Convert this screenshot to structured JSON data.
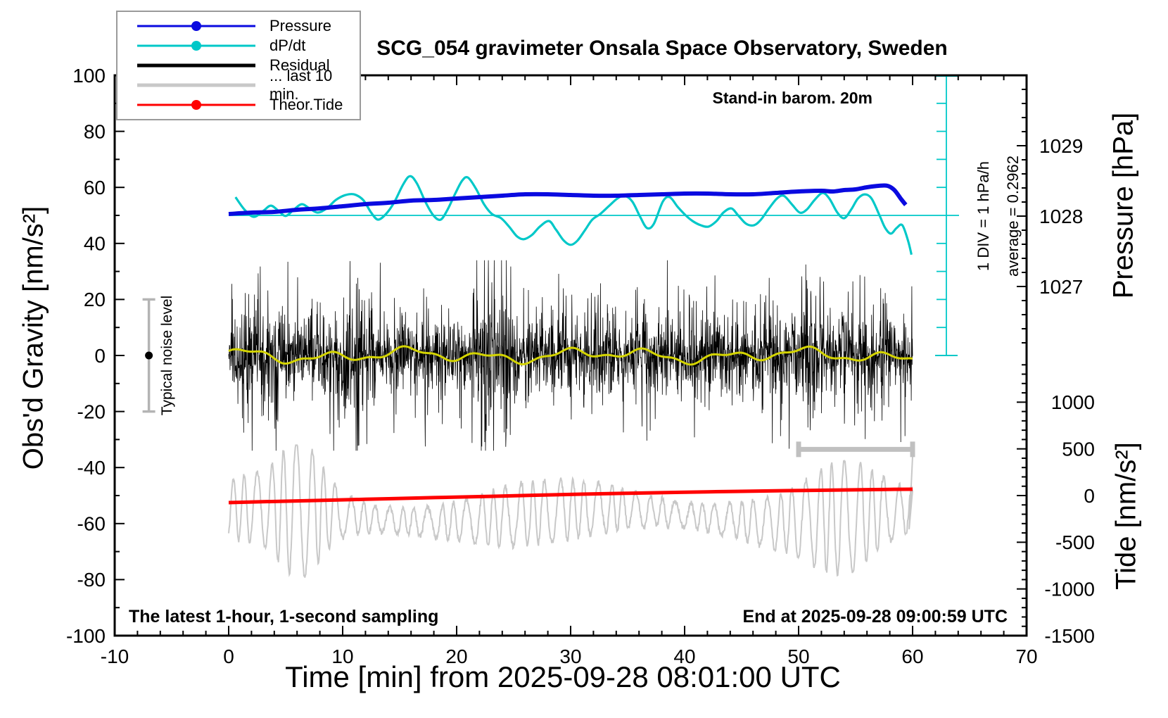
{
  "title": "SCG_054 gravimeter Onsala Space Observatory, Sweden",
  "annotations": {
    "standin": "Stand-in barom. 20m",
    "div_label": "1 DIV = 1 hPa/h",
    "average_label": "average = 0.2962",
    "noise_label": "Typical noise level",
    "sampling_note": "The latest 1-hour, 1-second sampling",
    "end_note": "End at 2025-09-28 09:00:59 UTC"
  },
  "legend": [
    {
      "label": "Pressure",
      "color": "#0a0ae0",
      "style": "dot"
    },
    {
      "label": "dP/dt",
      "color": "#00c8c8",
      "style": "dot"
    },
    {
      "label": "Residual",
      "color": "#000000",
      "style": "line"
    },
    {
      "label": "... last 10 min.",
      "color": "#c8c8c8",
      "style": "line"
    },
    {
      "label": "Theor.Tide",
      "color": "#ff0000",
      "style": "dot"
    }
  ],
  "axes": {
    "x": {
      "label": "Time [min] from 2025-09-28 08:01:00 UTC",
      "min": -10,
      "max": 70,
      "major": 10,
      "minor": 2,
      "tick_values": [
        -10,
        0,
        10,
        20,
        30,
        40,
        50,
        60,
        70
      ],
      "tick_labels": [
        "-10",
        "0",
        "10",
        "20",
        "30",
        "40",
        "50",
        "60",
        "70"
      ]
    },
    "gravity": {
      "label": "Obs'd Gravity [nm/s²]",
      "min": -100,
      "max": 100,
      "major": 20,
      "minor": 10,
      "tick_values": [
        100,
        80,
        60,
        40,
        20,
        0,
        -20,
        -40,
        -60,
        -80,
        -100
      ],
      "tick_labels": [
        "100",
        "80",
        "60",
        "40",
        "20",
        "0",
        "-20",
        "-40",
        "-60",
        "-80",
        "-100"
      ]
    },
    "pressure": {
      "label": "Pressure [hPa]",
      "top_value": 1030,
      "hpa_per_div": 1,
      "minor_hpa": 0.2,
      "tick_values": [
        1029,
        1028,
        1027
      ],
      "tick_labels": [
        "1029",
        "1028",
        "1027"
      ]
    },
    "tide": {
      "label": "Tide [nm/s²]",
      "min": -1500,
      "major": 500,
      "minor": 100,
      "tick_values": [
        1000,
        500,
        0,
        -500,
        -1000,
        -1500
      ],
      "tick_labels": [
        "1000",
        "500",
        "0",
        "-500",
        "-1000",
        "-1500"
      ]
    }
  },
  "chart_data": {
    "type": "line",
    "title": "SCG_054 gravimeter Onsala Space Observatory, Sweden",
    "xlabel": "Time [min] from 2025-09-28 08:01:00 UTC",
    "x_range": [
      -10,
      70
    ],
    "colors": {
      "pressure": "#0a0ae0",
      "dpdt": "#00c8c8",
      "residual": "#000000",
      "residual_smooth": "#d4d400",
      "last10": "#c8c8c8",
      "tide": "#ff0000",
      "ruler": "#00c8c8",
      "bracket": "#c0c0c0",
      "noisebar": "#b4b4b4"
    },
    "series": [
      {
        "name": "Pressure",
        "axis": "pressure",
        "units": "hPa",
        "points": [
          [
            0,
            1028.03
          ],
          [
            2,
            1028.05
          ],
          [
            4,
            1028.06
          ],
          [
            6,
            1028.09
          ],
          [
            8,
            1028.11
          ],
          [
            10,
            1028.14
          ],
          [
            12,
            1028.17
          ],
          [
            14,
            1028.19
          ],
          [
            16,
            1028.22
          ],
          [
            18,
            1028.23
          ],
          [
            20,
            1028.25
          ],
          [
            22,
            1028.27
          ],
          [
            24,
            1028.29
          ],
          [
            26,
            1028.31
          ],
          [
            28,
            1028.31
          ],
          [
            30,
            1028.3
          ],
          [
            32,
            1028.29
          ],
          [
            34,
            1028.29
          ],
          [
            36,
            1028.3
          ],
          [
            38,
            1028.31
          ],
          [
            40,
            1028.32
          ],
          [
            42,
            1028.32
          ],
          [
            44,
            1028.31
          ],
          [
            46,
            1028.31
          ],
          [
            48,
            1028.33
          ],
          [
            50,
            1028.35
          ],
          [
            52,
            1028.36
          ],
          [
            53,
            1028.35
          ],
          [
            54,
            1028.37
          ],
          [
            55,
            1028.38
          ],
          [
            56,
            1028.41
          ],
          [
            57,
            1028.43
          ],
          [
            57.8,
            1028.43
          ],
          [
            58.4,
            1028.37
          ],
          [
            59,
            1028.24
          ],
          [
            59.4,
            1028.16
          ]
        ]
      },
      {
        "name": "dP/dt",
        "axis": "dpdt",
        "units": "hPa/h",
        "zero_at_gravity": 50,
        "gravity_units_per_hpa_h": 10,
        "points": [
          [
            0.6,
            0.65
          ],
          [
            1.4,
            0.2
          ],
          [
            2.2,
            -0.05
          ],
          [
            3,
            0.15
          ],
          [
            3.7,
            0.35
          ],
          [
            4.4,
            0.15
          ],
          [
            5,
            -0.02
          ],
          [
            5.7,
            0.2
          ],
          [
            6.4,
            0.4
          ],
          [
            7.1,
            0.25
          ],
          [
            7.8,
            0.1
          ],
          [
            8.6,
            0.25
          ],
          [
            9.4,
            0.55
          ],
          [
            10.2,
            0.72
          ],
          [
            11,
            0.75
          ],
          [
            11.8,
            0.55
          ],
          [
            12.5,
            0.1
          ],
          [
            13.1,
            -0.15
          ],
          [
            13.8,
            0.05
          ],
          [
            14.5,
            0.45
          ],
          [
            15.3,
            1.1
          ],
          [
            15.9,
            1.4
          ],
          [
            16.5,
            1.15
          ],
          [
            17.3,
            0.45
          ],
          [
            18,
            -0.02
          ],
          [
            18.6,
            -0.15
          ],
          [
            19.2,
            0.2
          ],
          [
            19.9,
            0.8
          ],
          [
            20.5,
            1.25
          ],
          [
            21,
            1.35
          ],
          [
            21.7,
            0.95
          ],
          [
            22.4,
            0.4
          ],
          [
            23.1,
            0.05
          ],
          [
            23.9,
            -0.1
          ],
          [
            24.6,
            -0.4
          ],
          [
            25.3,
            -0.75
          ],
          [
            25.9,
            -0.85
          ],
          [
            26.6,
            -0.7
          ],
          [
            27.3,
            -0.4
          ],
          [
            28.1,
            -0.2
          ],
          [
            28.7,
            -0.5
          ],
          [
            29.4,
            -0.9
          ],
          [
            30,
            -1.05
          ],
          [
            30.6,
            -0.9
          ],
          [
            31.3,
            -0.5
          ],
          [
            31.9,
            -0.15
          ],
          [
            32.6,
            0.05
          ],
          [
            33.4,
            0.35
          ],
          [
            34.1,
            0.6
          ],
          [
            34.7,
            0.7
          ],
          [
            35.4,
            0.5
          ],
          [
            36.1,
            -0.05
          ],
          [
            36.7,
            -0.45
          ],
          [
            37.3,
            -0.3
          ],
          [
            38.1,
            0.5
          ],
          [
            38.7,
            0.65
          ],
          [
            39.4,
            0.3
          ],
          [
            40.1,
            0
          ],
          [
            40.7,
            -0.2
          ],
          [
            41.4,
            -0.35
          ],
          [
            42.1,
            -0.4
          ],
          [
            42.8,
            -0.2
          ],
          [
            43.4,
            0.1
          ],
          [
            44.1,
            0.25
          ],
          [
            44.7,
            0
          ],
          [
            45.4,
            -0.3
          ],
          [
            46.1,
            -0.35
          ],
          [
            46.7,
            -0.15
          ],
          [
            47.4,
            0.25
          ],
          [
            48.1,
            0.6
          ],
          [
            48.7,
            0.7
          ],
          [
            49.4,
            0.4
          ],
          [
            50.1,
            0.1
          ],
          [
            50.7,
            0.2
          ],
          [
            51.4,
            0.55
          ],
          [
            52.1,
            0.8
          ],
          [
            52.7,
            0.6
          ],
          [
            53.4,
            0.1
          ],
          [
            54,
            -0.1
          ],
          [
            54.6,
            0.2
          ],
          [
            55.2,
            0.6
          ],
          [
            55.8,
            0.75
          ],
          [
            56.4,
            0.6
          ],
          [
            57.1,
            0
          ],
          [
            57.6,
            -0.45
          ],
          [
            58.1,
            -0.65
          ],
          [
            58.6,
            -0.45
          ],
          [
            59.1,
            -0.35
          ],
          [
            59.6,
            -0.9
          ],
          [
            59.9,
            -1.4
          ]
        ]
      },
      {
        "name": "Theor.Tide",
        "axis": "tide",
        "units": "nm/s²",
        "points": [
          [
            0,
            -75
          ],
          [
            6,
            -57
          ],
          [
            12,
            -40
          ],
          [
            18,
            -22
          ],
          [
            23,
            -8
          ],
          [
            29,
            10
          ],
          [
            35,
            25
          ],
          [
            42,
            40
          ],
          [
            49,
            53
          ],
          [
            53,
            58
          ],
          [
            56,
            63
          ],
          [
            58,
            66
          ],
          [
            60,
            68
          ]
        ]
      },
      {
        "name": "Residual",
        "axis": "gravity",
        "units": "nm/s²",
        "synthetic": true,
        "stats": {
          "center": 0,
          "typical_band": 10,
          "extreme": 34,
          "samples": 2600,
          "sigma": 5,
          "tail": 2.2,
          "bursts": [
            [
              2.8,
              1.2,
              0.8
            ],
            [
              11,
              1.1,
              0.9
            ],
            [
              23.4,
              1.3,
              1.0
            ],
            [
              51,
              1.6,
              0.7
            ]
          ]
        }
      },
      {
        "name": "Residual smoothed",
        "axis": "gravity",
        "units": "nm/s²",
        "synthetic": true,
        "stats": {
          "amplitudes": [
            1.6,
            1.1,
            0.7
          ],
          "freqs": [
            0.9,
            0.37,
            2.1
          ],
          "phases": [
            0,
            2,
            1
          ]
        }
      },
      {
        "name": "... last 10 min.",
        "axis": "gravity",
        "units": "nm/s²",
        "synthetic": true,
        "stats": {
          "center": -57,
          "base_amp": 8,
          "period_min": 1.15,
          "bursts": [
            [
              6.3,
              2.4,
              15
            ],
            [
              54,
              3.5,
              9
            ]
          ],
          "range": [
            -88,
            -32
          ],
          "source_window_min": [
            50,
            60
          ]
        }
      }
    ],
    "markers": {
      "noise_level": {
        "x_min": -7,
        "gravity_span": [
          -20,
          20
        ],
        "dot_at": 0
      },
      "last10_bracket": {
        "x_min_span": [
          50,
          60
        ],
        "gravity_y": -33.5
      },
      "dpdt_zero_line_gravity": 50,
      "ruler": {
        "x_min": 62.9,
        "div_hpa_per_h": 1,
        "divisions": 10
      }
    }
  }
}
